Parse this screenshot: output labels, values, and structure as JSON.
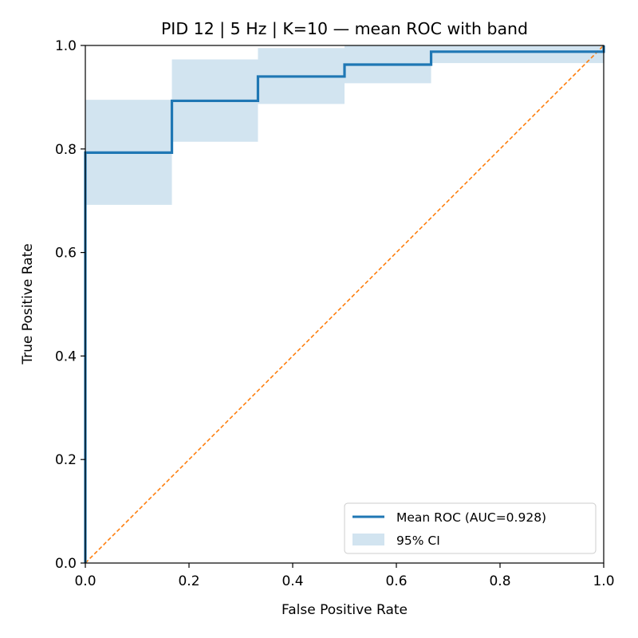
{
  "chart_data": {
    "type": "line",
    "title": "PID 12 | 5 Hz | K=10 — mean ROC with band",
    "xlabel": "False Positive Rate",
    "ylabel": "True Positive Rate",
    "xlim": [
      0,
      1
    ],
    "ylim": [
      0,
      1
    ],
    "x_ticks": [
      "0.0",
      "0.2",
      "0.4",
      "0.6",
      "0.8",
      "1.0"
    ],
    "y_ticks": [
      "0.0",
      "0.2",
      "0.4",
      "0.6",
      "0.8",
      "1.0"
    ],
    "grid": false,
    "legend_position": "lower-right",
    "series": [
      {
        "name": "Mean ROC (AUC=0.928)",
        "color": "#1f77b4",
        "x": [
          0.0,
          0.0,
          0.167,
          0.167,
          0.333,
          0.333,
          0.5,
          0.5,
          0.667,
          0.667,
          1.0,
          1.0
        ],
        "y": [
          0.0,
          0.793,
          0.793,
          0.893,
          0.893,
          0.94,
          0.94,
          0.963,
          0.963,
          0.988,
          0.988,
          1.0
        ]
      }
    ],
    "band": {
      "name": "95% CI",
      "color": "#1f77b4",
      "opacity": 0.2,
      "x": [
        0.0,
        0.167,
        0.167,
        0.333,
        0.333,
        0.5,
        0.5,
        0.667,
        0.667,
        1.0
      ],
      "lower": [
        0.692,
        0.692,
        0.814,
        0.814,
        0.887,
        0.887,
        0.927,
        0.927,
        0.966,
        0.966
      ],
      "upper": [
        0.895,
        0.895,
        0.973,
        0.973,
        0.995,
        0.995,
        1.0,
        1.0,
        1.0,
        1.0
      ]
    },
    "reference_line": {
      "color": "#ff7f0e",
      "style": "dashed",
      "x": [
        0,
        1
      ],
      "y": [
        0,
        1
      ]
    }
  }
}
